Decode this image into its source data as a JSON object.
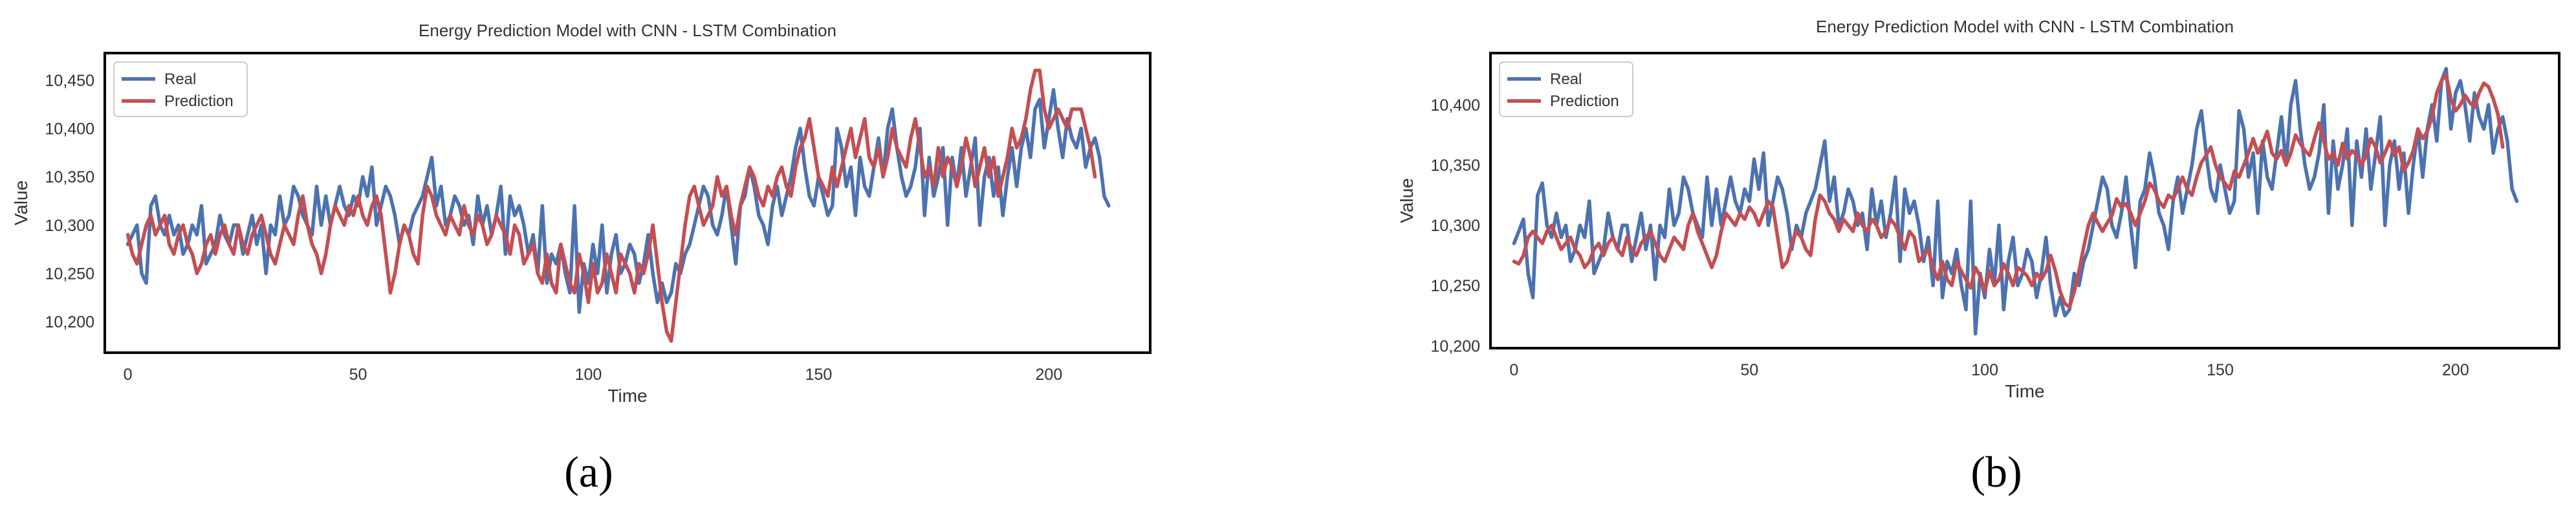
{
  "colors": {
    "real": "#4C72B0",
    "prediction": "#C44E52",
    "axis": "#000000",
    "text": "#333333"
  },
  "chart_data": [
    {
      "type": "line",
      "panel_label": "(a)",
      "title": "Energy Prediction Model with CNN - LSTM Combination",
      "xlabel": "Time",
      "ylabel": "Value",
      "xlim": [
        -5,
        222
      ],
      "ylim": [
        10168,
        10478
      ],
      "xticks": [
        0,
        50,
        100,
        150,
        200
      ],
      "xtick_labels": [
        "0",
        "50",
        "100",
        "150",
        "200"
      ],
      "yticks": [
        10200,
        10250,
        10300,
        10350,
        10400,
        10450
      ],
      "ytick_labels": [
        "10,200",
        "10,250",
        "10,300",
        "10,350",
        "10,400",
        "10,450"
      ],
      "grid": false,
      "legend_position": "top-left",
      "series": [
        {
          "name": "Real",
          "color": "#4C72B0",
          "values": [
            10280,
            10290,
            10300,
            10250,
            10240,
            10320,
            10330,
            10300,
            10290,
            10310,
            10290,
            10300,
            10270,
            10280,
            10300,
            10290,
            10320,
            10260,
            10270,
            10280,
            10310,
            10290,
            10280,
            10300,
            10300,
            10270,
            10290,
            10310,
            10280,
            10300,
            10250,
            10300,
            10290,
            10330,
            10300,
            10310,
            10340,
            10330,
            10310,
            10300,
            10290,
            10340,
            10300,
            10330,
            10300,
            10320,
            10340,
            10320,
            10310,
            10330,
            10320,
            10350,
            10330,
            10360,
            10300,
            10320,
            10340,
            10330,
            10310,
            10280,
            10300,
            10290,
            10310,
            10320,
            10330,
            10350,
            10370,
            10320,
            10340,
            10300,
            10310,
            10330,
            10320,
            10300,
            10310,
            10280,
            10330,
            10300,
            10320,
            10290,
            10310,
            10340,
            10270,
            10330,
            10310,
            10320,
            10300,
            10270,
            10290,
            10250,
            10320,
            10240,
            10270,
            10260,
            10280,
            10250,
            10230,
            10320,
            10210,
            10260,
            10240,
            10280,
            10250,
            10300,
            10230,
            10270,
            10290,
            10250,
            10260,
            10280,
            10270,
            10240,
            10260,
            10290,
            10250,
            10220,
            10240,
            10220,
            10230,
            10260,
            10250,
            10270,
            10280,
            10300,
            10320,
            10340,
            10330,
            10300,
            10290,
            10310,
            10340,
            10300,
            10260,
            10320,
            10330,
            10360,
            10340,
            10310,
            10300,
            10280,
            10320,
            10340,
            10310,
            10330,
            10350,
            10380,
            10400,
            10360,
            10330,
            10320,
            10350,
            10330,
            10310,
            10320,
            10400,
            10380,
            10340,
            10360,
            10310,
            10370,
            10340,
            10330,
            10360,
            10390,
            10350,
            10400,
            10420,
            10380,
            10350,
            10330,
            10340,
            10360,
            10400,
            10310,
            10370,
            10330,
            10350,
            10380,
            10300,
            10370,
            10340,
            10380,
            10330,
            10360,
            10390,
            10300,
            10350,
            10370,
            10330,
            10360,
            10310,
            10350,
            10380,
            10340,
            10380,
            10400,
            10370,
            10420,
            10430,
            10380,
            10410,
            10440,
            10400,
            10370,
            10410,
            10390,
            10380,
            10400,
            10360,
            10380,
            10390,
            10370,
            10330,
            10320
          ],
          "notes": ""
        },
        {
          "name": "Prediction",
          "color": "#C44E52",
          "values": [
            10290,
            10270,
            10260,
            10280,
            10300,
            10310,
            10290,
            10300,
            10310,
            10280,
            10270,
            10290,
            10300,
            10280,
            10270,
            10250,
            10260,
            10280,
            10290,
            10270,
            10290,
            10300,
            10280,
            10270,
            10300,
            10280,
            10270,
            10290,
            10300,
            10310,
            10290,
            10270,
            10260,
            10280,
            10300,
            10290,
            10280,
            10310,
            10330,
            10300,
            10280,
            10270,
            10250,
            10270,
            10300,
            10320,
            10310,
            10300,
            10320,
            10310,
            10330,
            10310,
            10300,
            10320,
            10330,
            10310,
            10270,
            10230,
            10250,
            10280,
            10300,
            10290,
            10270,
            10260,
            10310,
            10340,
            10330,
            10310,
            10300,
            10290,
            10310,
            10300,
            10290,
            10320,
            10300,
            10290,
            10310,
            10300,
            10280,
            10290,
            10310,
            10300,
            10290,
            10270,
            10300,
            10290,
            10260,
            10270,
            10280,
            10250,
            10240,
            10270,
            10240,
            10230,
            10280,
            10260,
            10240,
            10230,
            10270,
            10250,
            10220,
            10260,
            10230,
            10240,
            10270,
            10250,
            10230,
            10270,
            10260,
            10250,
            10230,
            10260,
            10250,
            10270,
            10300,
            10260,
            10220,
            10190,
            10180,
            10220,
            10260,
            10300,
            10330,
            10340,
            10320,
            10300,
            10310,
            10320,
            10350,
            10330,
            10340,
            10310,
            10290,
            10320,
            10340,
            10360,
            10350,
            10330,
            10320,
            10340,
            10330,
            10350,
            10360,
            10340,
            10330,
            10360,
            10380,
            10390,
            10410,
            10380,
            10350,
            10340,
            10330,
            10360,
            10340,
            10360,
            10380,
            10400,
            10370,
            10390,
            10410,
            10370,
            10360,
            10380,
            10350,
            10370,
            10400,
            10380,
            10370,
            10360,
            10390,
            10410,
            10380,
            10350,
            10360,
            10340,
            10380,
            10350,
            10370,
            10360,
            10340,
            10360,
            10390,
            10370,
            10340,
            10360,
            10380,
            10350,
            10370,
            10330,
            10350,
            10370,
            10400,
            10380,
            10390,
            10410,
            10440,
            10460,
            10460,
            10420,
            10400,
            10410,
            10420,
            10410,
            10400,
            10420,
            10420,
            10420,
            10400,
            10380,
            10350
          ],
          "notes": ""
        }
      ]
    },
    {
      "type": "line",
      "panel_label": "(b)",
      "title": "Energy Prediction Model with CNN - LSTM Combination",
      "xlabel": "Time",
      "ylabel": "Value",
      "xlim": [
        -5,
        222
      ],
      "ylim": [
        10198,
        10443
      ],
      "xticks": [
        0,
        50,
        100,
        150,
        200
      ],
      "xtick_labels": [
        "0",
        "50",
        "100",
        "150",
        "200"
      ],
      "yticks": [
        10200,
        10250,
        10300,
        10350,
        10400
      ],
      "ytick_labels": [
        "10,200",
        "10,250",
        "10,300",
        "10,350",
        "10,400"
      ],
      "grid": false,
      "legend_position": "top-left",
      "series": [
        {
          "name": "Real",
          "color": "#4C72B0",
          "values": [
            10285,
            10295,
            10305,
            10260,
            10240,
            10325,
            10335,
            10300,
            10290,
            10310,
            10290,
            10300,
            10270,
            10280,
            10300,
            10290,
            10320,
            10260,
            10270,
            10280,
            10310,
            10290,
            10280,
            10300,
            10300,
            10270,
            10290,
            10310,
            10280,
            10300,
            10255,
            10300,
            10290,
            10330,
            10300,
            10310,
            10340,
            10330,
            10310,
            10300,
            10290,
            10340,
            10300,
            10330,
            10300,
            10320,
            10340,
            10320,
            10310,
            10330,
            10320,
            10355,
            10330,
            10360,
            10300,
            10320,
            10340,
            10330,
            10310,
            10280,
            10300,
            10290,
            10310,
            10320,
            10330,
            10350,
            10370,
            10320,
            10340,
            10300,
            10310,
            10330,
            10320,
            10300,
            10310,
            10280,
            10330,
            10300,
            10320,
            10290,
            10310,
            10340,
            10270,
            10330,
            10310,
            10320,
            10300,
            10270,
            10290,
            10250,
            10320,
            10240,
            10270,
            10260,
            10280,
            10250,
            10230,
            10320,
            10210,
            10260,
            10240,
            10280,
            10250,
            10300,
            10230,
            10270,
            10290,
            10250,
            10260,
            10280,
            10270,
            10240,
            10260,
            10290,
            10250,
            10225,
            10240,
            10225,
            10230,
            10260,
            10250,
            10270,
            10280,
            10300,
            10320,
            10340,
            10330,
            10300,
            10290,
            10310,
            10340,
            10300,
            10265,
            10320,
            10330,
            10360,
            10340,
            10310,
            10300,
            10280,
            10320,
            10340,
            10310,
            10330,
            10350,
            10380,
            10395,
            10360,
            10330,
            10320,
            10350,
            10330,
            10310,
            10320,
            10395,
            10380,
            10340,
            10360,
            10310,
            10370,
            10340,
            10330,
            10360,
            10390,
            10350,
            10400,
            10420,
            10380,
            10350,
            10330,
            10340,
            10360,
            10400,
            10310,
            10370,
            10330,
            10350,
            10380,
            10300,
            10370,
            10340,
            10380,
            10330,
            10360,
            10390,
            10300,
            10350,
            10370,
            10330,
            10360,
            10310,
            10350,
            10380,
            10340,
            10380,
            10400,
            10370,
            10420,
            10430,
            10380,
            10410,
            10420,
            10400,
            10370,
            10410,
            10390,
            10380,
            10400,
            10360,
            10380,
            10390,
            10370,
            10330,
            10320
          ],
          "notes": ""
        },
        {
          "name": "Prediction",
          "color": "#C44E52",
          "values": [
            10270,
            10268,
            10275,
            10290,
            10295,
            10290,
            10285,
            10295,
            10300,
            10290,
            10280,
            10285,
            10290,
            10280,
            10275,
            10265,
            10270,
            10280,
            10285,
            10275,
            10285,
            10290,
            10280,
            10275,
            10290,
            10280,
            10275,
            10285,
            10290,
            10295,
            10285,
            10275,
            10270,
            10280,
            10290,
            10285,
            10280,
            10300,
            10310,
            10295,
            10285,
            10275,
            10265,
            10275,
            10295,
            10310,
            10305,
            10300,
            10310,
            10305,
            10315,
            10310,
            10300,
            10310,
            10320,
            10315,
            10290,
            10265,
            10270,
            10285,
            10295,
            10290,
            10280,
            10275,
            10305,
            10325,
            10320,
            10310,
            10305,
            10295,
            10305,
            10300,
            10295,
            10310,
            10300,
            10295,
            10305,
            10300,
            10290,
            10295,
            10305,
            10300,
            10290,
            10280,
            10295,
            10290,
            10270,
            10275,
            10280,
            10265,
            10255,
            10270,
            10255,
            10250,
            10270,
            10262,
            10255,
            10248,
            10265,
            10258,
            10245,
            10262,
            10250,
            10255,
            10268,
            10260,
            10250,
            10265,
            10262,
            10258,
            10250,
            10260,
            10255,
            10262,
            10275,
            10262,
            10245,
            10235,
            10232,
            10245,
            10262,
            10282,
            10300,
            10310,
            10302,
            10295,
            10302,
            10308,
            10322,
            10315,
            10318,
            10310,
            10300,
            10310,
            10320,
            10335,
            10330,
            10320,
            10315,
            10325,
            10322,
            10330,
            10340,
            10330,
            10325,
            10340,
            10352,
            10358,
            10365,
            10350,
            10340,
            10335,
            10330,
            10345,
            10340,
            10350,
            10360,
            10372,
            10360,
            10368,
            10378,
            10360,
            10355,
            10362,
            10350,
            10360,
            10375,
            10368,
            10362,
            10358,
            10372,
            10385,
            10370,
            10355,
            10360,
            10350,
            10368,
            10355,
            10362,
            10358,
            10350,
            10358,
            10372,
            10365,
            10352,
            10360,
            10370,
            10358,
            10365,
            10345,
            10352,
            10362,
            10380,
            10372,
            10378,
            10390,
            10410,
            10420,
            10425,
            10405,
            10395,
            10400,
            10408,
            10402,
            10398,
            10410,
            10418,
            10415,
            10405,
            10392,
            10365
          ],
          "notes": ""
        }
      ]
    }
  ]
}
